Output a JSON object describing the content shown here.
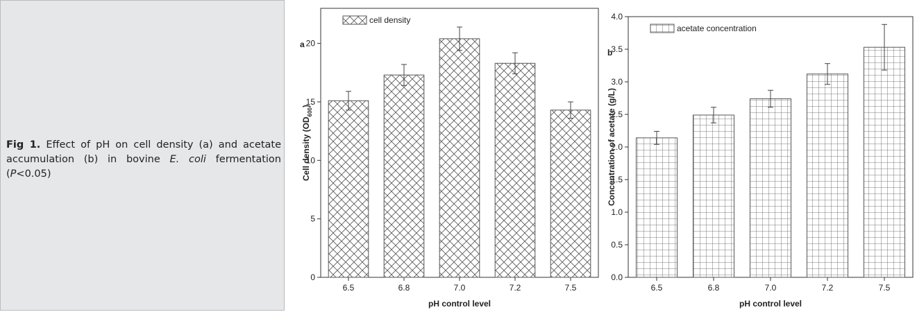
{
  "caption": {
    "label": "Fig 1.",
    "parts": [
      "Effect of pH on cell density (a) and acetate accumulation (b) in bovine ",
      "E. coli",
      " fermentation (",
      "P",
      "<0.05)"
    ]
  },
  "chart_data": [
    {
      "type": "bar",
      "panel": "a",
      "legend": "cell density",
      "pattern": "crosshatch",
      "color": "#555555",
      "xlabel": "pH control level",
      "ylabel": "Cell density (OD",
      "ylabel_sub": "600",
      "ylabel_end": ")",
      "categories": [
        "6.5",
        "6.8",
        "7.0",
        "7.2",
        "7.5"
      ],
      "values": [
        15.1,
        17.3,
        20.4,
        18.3,
        14.3
      ],
      "errors": [
        0.8,
        0.9,
        1.0,
        0.9,
        0.7
      ],
      "ylim": [
        0,
        23
      ],
      "yticks": [
        0,
        5,
        10,
        15,
        20
      ]
    },
    {
      "type": "bar",
      "panel": "b",
      "legend": "acetate concentration",
      "pattern": "grid",
      "color": "#555555",
      "xlabel": "pH control level",
      "ylabel": "Concentration of acetate (g/L)",
      "categories": [
        "6.5",
        "6.8",
        "7.0",
        "7.2",
        "7.5"
      ],
      "values": [
        2.14,
        2.49,
        2.74,
        3.12,
        3.53
      ],
      "errors": [
        0.1,
        0.12,
        0.13,
        0.16,
        0.35
      ],
      "ylim": [
        0,
        4
      ],
      "yticks": [
        {
          "value": 0,
          "label": "0.0"
        },
        0.5,
        {
          "value": 1,
          "label": "1.0"
        },
        1.5,
        {
          "value": 2,
          "label": "2.0"
        },
        2.5,
        {
          "value": 3,
          "label": "3.0"
        },
        3.5,
        {
          "value": 4,
          "label": "4.0"
        }
      ]
    }
  ]
}
